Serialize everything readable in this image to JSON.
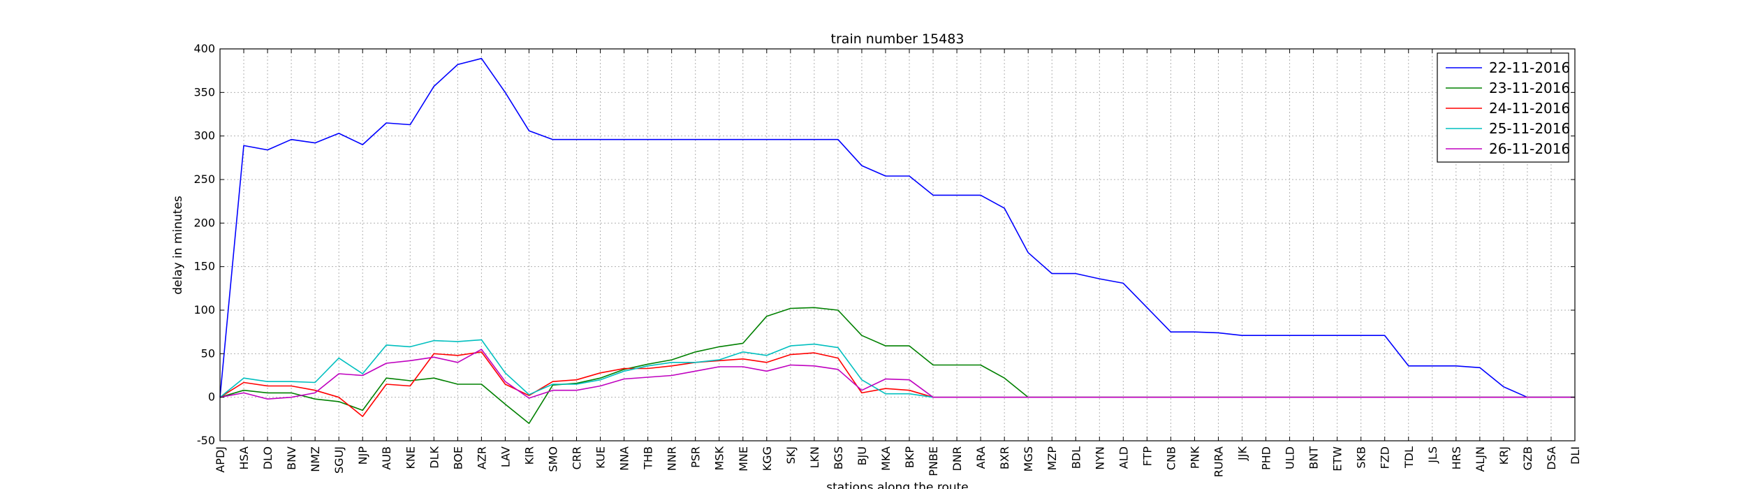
{
  "chart_data": {
    "type": "line",
    "title": "train number 15483",
    "xlabel": "stations along the route",
    "ylabel": "delay in minutes",
    "ylim": [
      -50,
      400
    ],
    "yticks": [
      -50,
      0,
      50,
      100,
      150,
      200,
      250,
      300,
      350,
      400
    ],
    "grid": true,
    "legend_position": "top-right",
    "categories": [
      "APDJ",
      "HSA",
      "DLO",
      "BNV",
      "NMZ",
      "SGUJ",
      "NJP",
      "AUB",
      "KNE",
      "DLK",
      "BOE",
      "AZR",
      "LAV",
      "KIR",
      "SMO",
      "CRR",
      "KUE",
      "NNA",
      "THB",
      "NNR",
      "PSR",
      "MSK",
      "MNE",
      "KGG",
      "SKJ",
      "LKN",
      "BGS",
      "BJU",
      "MKA",
      "BKP",
      "PNBE",
      "DNR",
      "ARA",
      "BXR",
      "MGS",
      "MZP",
      "BDL",
      "NYN",
      "ALD",
      "FTP",
      "CNB",
      "PNK",
      "RURA",
      "JJK",
      "PHD",
      "ULD",
      "BNT",
      "ETW",
      "SKB",
      "FZD",
      "TDL",
      "JLS",
      "HRS",
      "ALJN",
      "KRJ",
      "GZB",
      "DSA",
      "DLI"
    ],
    "series": [
      {
        "name": "22-11-2016",
        "color": "#0000ff",
        "values": [
          0,
          289,
          284,
          296,
          292,
          303,
          290,
          315,
          313,
          357,
          382,
          389,
          350,
          306,
          296,
          296,
          296,
          296,
          296,
          296,
          296,
          296,
          296,
          296,
          296,
          296,
          296,
          266,
          254,
          254,
          232,
          232,
          232,
          217,
          166,
          142,
          142,
          136,
          131,
          103,
          75,
          75,
          74,
          71,
          71,
          71,
          71,
          71,
          71,
          71,
          36,
          36,
          36,
          34,
          12,
          0,
          0,
          0
        ]
      },
      {
        "name": "23-11-2016",
        "color": "#008000",
        "values": [
          0,
          8,
          5,
          5,
          -2,
          -5,
          -15,
          22,
          19,
          22,
          15,
          15,
          -8,
          -30,
          14,
          16,
          22,
          32,
          38,
          43,
          52,
          58,
          62,
          93,
          102,
          103,
          100,
          71,
          59,
          59,
          37,
          37,
          37,
          22,
          0,
          0,
          0,
          0,
          0,
          0,
          0,
          0,
          0,
          0,
          0,
          0,
          0,
          0,
          0,
          0,
          0,
          0,
          0,
          0,
          0,
          0,
          0,
          0
        ]
      },
      {
        "name": "24-11-2016",
        "color": "#ff0000",
        "values": [
          0,
          17,
          13,
          13,
          8,
          0,
          -22,
          15,
          13,
          50,
          48,
          52,
          15,
          2,
          18,
          20,
          28,
          33,
          33,
          36,
          40,
          42,
          44,
          40,
          49,
          51,
          45,
          5,
          10,
          8,
          0,
          0,
          0,
          0,
          0,
          0,
          0,
          0,
          0,
          0,
          0,
          0,
          0,
          0,
          0,
          0,
          0,
          0,
          0,
          0,
          0,
          0,
          0,
          0,
          0,
          0,
          0,
          0
        ]
      },
      {
        "name": "25-11-2016",
        "color": "#00bfbf",
        "values": [
          0,
          22,
          18,
          18,
          17,
          45,
          27,
          60,
          58,
          65,
          64,
          66,
          28,
          3,
          15,
          15,
          20,
          30,
          36,
          40,
          40,
          43,
          52,
          48,
          59,
          61,
          57,
          20,
          4,
          4,
          0,
          0,
          0,
          0,
          0,
          0,
          0,
          0,
          0,
          0,
          0,
          0,
          0,
          0,
          0,
          0,
          0,
          0,
          0,
          0,
          0,
          0,
          0,
          0,
          0,
          0,
          0,
          0
        ]
      },
      {
        "name": "26-11-2016",
        "color": "#bf00bf",
        "values": [
          0,
          5,
          -2,
          0,
          5,
          27,
          25,
          39,
          42,
          46,
          40,
          55,
          18,
          -1,
          8,
          8,
          13,
          21,
          23,
          25,
          30,
          35,
          35,
          30,
          37,
          36,
          32,
          8,
          21,
          20,
          0,
          0,
          0,
          0,
          0,
          0,
          0,
          0,
          0,
          0,
          0,
          0,
          0,
          0,
          0,
          0,
          0,
          0,
          0,
          0,
          0,
          0,
          0,
          0,
          0,
          0,
          0,
          0
        ]
      }
    ]
  }
}
